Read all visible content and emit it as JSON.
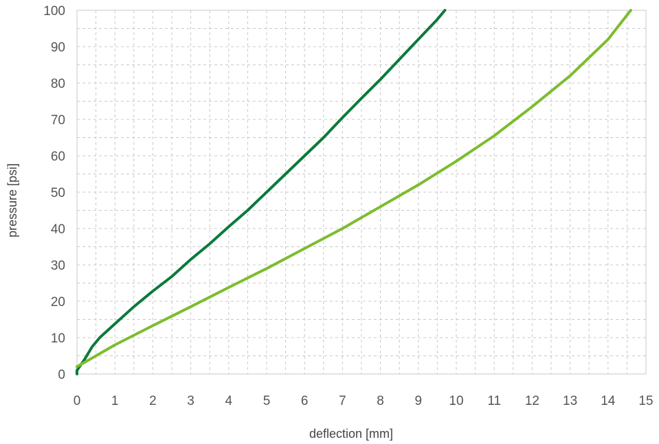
{
  "chart_data": {
    "type": "line",
    "title": "",
    "xlabel": "deflection [mm]",
    "ylabel": "pressure [psi]",
    "xlim": [
      0,
      15
    ],
    "ylim": [
      0,
      100
    ],
    "x_ticks": [
      0,
      1,
      2,
      3,
      4,
      5,
      6,
      7,
      8,
      9,
      10,
      11,
      12,
      13,
      14,
      15
    ],
    "y_ticks": [
      0,
      10,
      20,
      30,
      40,
      50,
      60,
      70,
      80,
      90,
      100
    ],
    "x_minor_step": 0.5,
    "y_minor_step": 5,
    "grid": true,
    "legend": "none",
    "series": [
      {
        "color": "#0b7a3b",
        "points": [
          [
            0,
            0
          ],
          [
            0,
            1
          ],
          [
            0.1,
            2.5
          ],
          [
            0.2,
            4
          ],
          [
            0.4,
            7.5
          ],
          [
            0.6,
            10
          ],
          [
            1,
            13.8
          ],
          [
            1.5,
            18.5
          ],
          [
            2,
            22.8
          ],
          [
            2.5,
            26.8
          ],
          [
            3,
            31.5
          ],
          [
            3.5,
            35.8
          ],
          [
            4,
            40.5
          ],
          [
            4.5,
            45
          ],
          [
            5,
            50
          ],
          [
            5.5,
            55
          ],
          [
            6,
            60
          ],
          [
            6.5,
            65
          ],
          [
            7,
            70.5
          ],
          [
            7.5,
            75.8
          ],
          [
            8,
            81
          ],
          [
            8.5,
            86.5
          ],
          [
            9,
            92
          ],
          [
            9.5,
            97.5
          ],
          [
            9.7,
            100
          ]
        ]
      },
      {
        "color": "#7cbc2e",
        "points": [
          [
            0,
            2
          ],
          [
            0.5,
            5
          ],
          [
            1,
            8
          ],
          [
            2,
            13.3
          ],
          [
            3,
            18.5
          ],
          [
            4,
            23.8
          ],
          [
            5,
            29
          ],
          [
            6,
            34.5
          ],
          [
            7,
            40
          ],
          [
            8,
            46
          ],
          [
            9,
            52
          ],
          [
            10,
            58.5
          ],
          [
            11,
            65.5
          ],
          [
            12,
            73.5
          ],
          [
            13,
            82
          ],
          [
            14,
            92
          ],
          [
            14.6,
            100
          ]
        ]
      }
    ]
  }
}
